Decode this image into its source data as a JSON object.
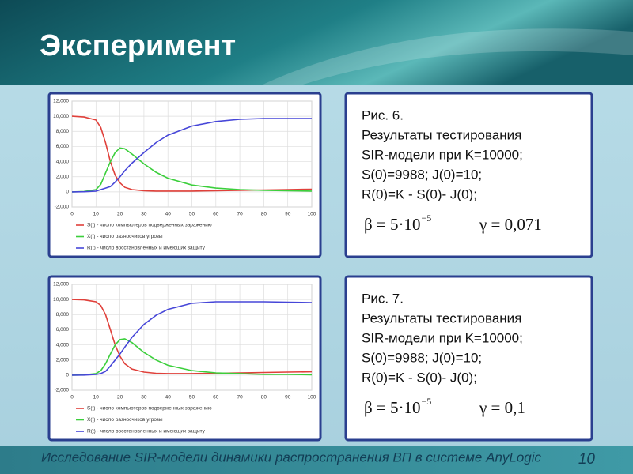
{
  "header": {
    "title": "Эксперимент"
  },
  "chart_data": [
    {
      "type": "line",
      "x": [
        0,
        5,
        10,
        12,
        14,
        16,
        18,
        20,
        22,
        25,
        30,
        35,
        40,
        50,
        60,
        70,
        80,
        90,
        100
      ],
      "xlim": [
        0,
        100
      ],
      "xticks": [
        0,
        10,
        20,
        30,
        40,
        50,
        60,
        70,
        80,
        90,
        100
      ],
      "ylim": [
        -2000,
        12000
      ],
      "yticks": [
        {
          "value": -2000,
          "label": "-2,000"
        },
        0,
        {
          "value": 2000,
          "label": "2,000"
        },
        {
          "value": 4000,
          "label": "4,000"
        },
        {
          "value": 6000,
          "label": "6,000"
        },
        {
          "value": 8000,
          "label": "8,000"
        },
        {
          "value": 10000,
          "label": "10,000"
        },
        {
          "value": 12000,
          "label": "12,000"
        }
      ],
      "grid": true,
      "series": [
        {
          "name": "S(t) - число компьютеров подверженных заражению",
          "color": "#e0403a",
          "values": [
            10000,
            9900,
            9500,
            8500,
            6500,
            4000,
            2200,
            1200,
            600,
            300,
            150,
            100,
            100,
            100,
            150,
            200,
            250,
            300,
            350
          ]
        },
        {
          "name": "X(t) - число разносчиков угрозы",
          "color": "#3ccf3c",
          "values": [
            0,
            50,
            300,
            1000,
            2500,
            4000,
            5200,
            5800,
            5700,
            5000,
            3700,
            2600,
            1800,
            900,
            500,
            300,
            200,
            150,
            100
          ]
        },
        {
          "name": "R(t) - число восстановленных и имеющих защиту",
          "color": "#4646d8",
          "values": [
            0,
            20,
            100,
            300,
            500,
            700,
            1300,
            2000,
            2800,
            3800,
            5200,
            6500,
            7500,
            8700,
            9300,
            9600,
            9700,
            9700,
            9700
          ]
        }
      ]
    },
    {
      "type": "line",
      "x": [
        0,
        5,
        10,
        12,
        14,
        16,
        18,
        20,
        22,
        25,
        30,
        35,
        40,
        50,
        60,
        70,
        80,
        90,
        100
      ],
      "xlim": [
        0,
        100
      ],
      "xticks": [
        0,
        10,
        20,
        30,
        40,
        50,
        60,
        70,
        80,
        90,
        100
      ],
      "ylim": [
        -2000,
        12000
      ],
      "yticks": [
        {
          "value": -2000,
          "label": "-2,000"
        },
        0,
        {
          "value": 2000,
          "label": "2,000"
        },
        {
          "value": 4000,
          "label": "4,000"
        },
        {
          "value": 6000,
          "label": "6,000"
        },
        {
          "value": 8000,
          "label": "8,000"
        },
        {
          "value": 10000,
          "label": "10,000"
        },
        {
          "value": 12000,
          "label": "12,000"
        }
      ],
      "grid": true,
      "series": [
        {
          "name": "S(t) - число компьютеров подверженных заражению",
          "color": "#e0403a",
          "values": [
            10000,
            9950,
            9700,
            9200,
            8000,
            6000,
            4000,
            2500,
            1500,
            800,
            400,
            250,
            200,
            200,
            250,
            300,
            350,
            400,
            450
          ]
        },
        {
          "name": "X(t) - число разносчиков угрозы",
          "color": "#3ccf3c",
          "values": [
            0,
            30,
            200,
            600,
            1500,
            2800,
            4000,
            4700,
            4800,
            4300,
            3000,
            2000,
            1300,
            600,
            300,
            200,
            100,
            100,
            50
          ]
        },
        {
          "name": "R(t) - число восстановленных и имеющих защиту",
          "color": "#4646d8",
          "values": [
            0,
            10,
            100,
            200,
            500,
            1200,
            2000,
            2800,
            3700,
            5000,
            6700,
            7900,
            8700,
            9500,
            9700,
            9700,
            9700,
            9650,
            9600
          ]
        }
      ]
    }
  ],
  "captions": [
    {
      "lines": [
        "Рис. 6.",
        "Результаты тестирования",
        "SIR-модели при K=10000;",
        "S(0)=9988;  J(0)=10;",
        "R(0)=K - S(0)- J(0);"
      ],
      "formula": {
        "beta": "β = 5·10",
        "exponent": "−5",
        "gamma": "γ = 0,071"
      }
    },
    {
      "lines": [
        "Рис. 7.",
        "Результаты тестирования",
        "SIR-модели при K=10000;",
        "S(0)=9988;  J(0)=10;",
        "R(0)=K - S(0)- J(0);"
      ],
      "formula": {
        "beta": "β = 5·10",
        "exponent": "−5",
        "gamma": "γ = 0,1"
      }
    }
  ],
  "footer": {
    "text": "Исследование SIR-модели динамики распространения ВП в системе AnyLogic",
    "page": "10"
  }
}
